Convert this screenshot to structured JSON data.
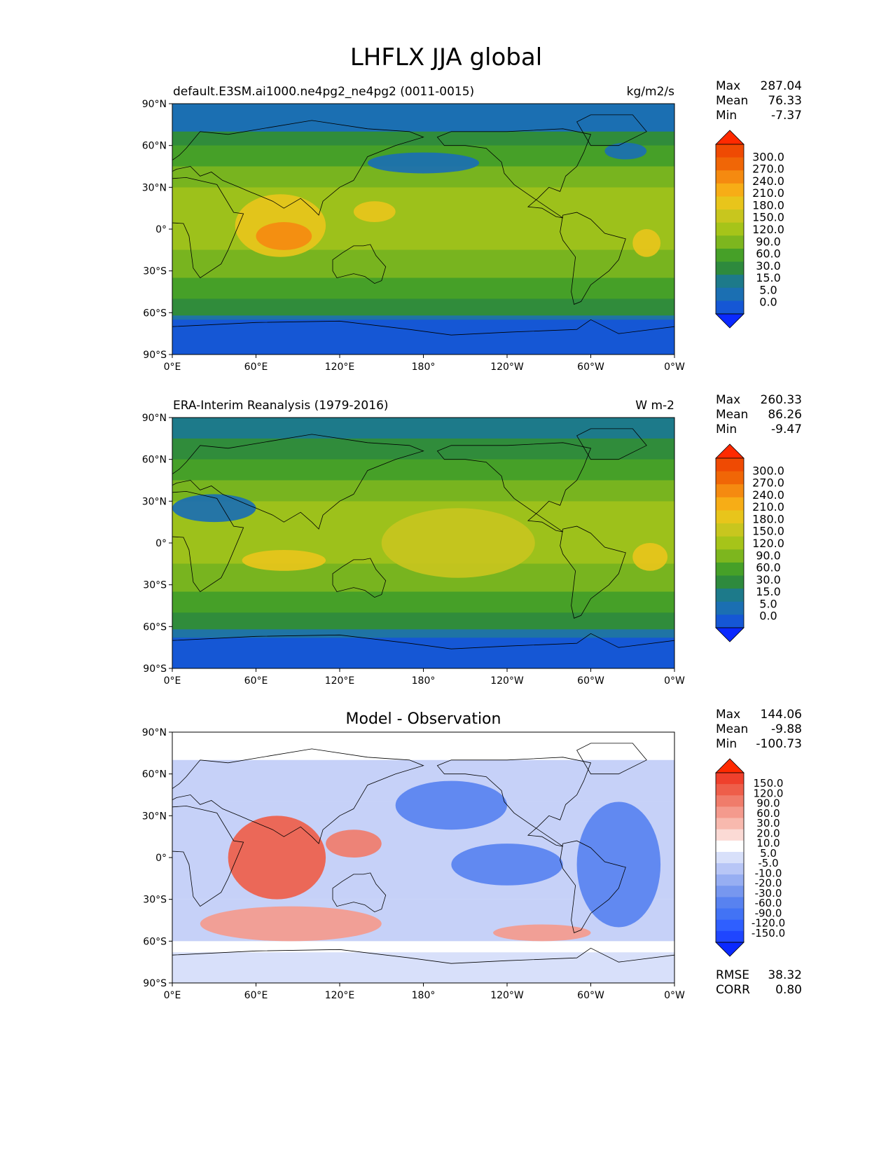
{
  "figure_title": "LHFLX JJA global",
  "colors": {
    "main_cbar": [
      "#0a29ff",
      "#1557d5",
      "#1b6fb2",
      "#1d7a8a",
      "#2e8a3d",
      "#46a028",
      "#7db61e",
      "#a6c419",
      "#c8c61e",
      "#e8c51b",
      "#f7ad16",
      "#f58a10",
      "#f06606",
      "#ef4a03",
      "#ff2a00"
    ],
    "diff_cbar": [
      "#0a29ff",
      "#1f46ff",
      "#2f5fff",
      "#4273f5",
      "#5882f0",
      "#7797ef",
      "#97aef2",
      "#b8c6f6",
      "#d8e0fa",
      "#ffffff",
      "#fbdad5",
      "#f8b9ae",
      "#f49a8d",
      "#f07c6b",
      "#ee5e4a",
      "#ef402c",
      "#ff2a00"
    ],
    "land": "#777777",
    "coast": "#000000"
  },
  "chart_data": [
    {
      "type": "contour-map",
      "title": "default.E3SM.ai1000.ne4pg2_ne4pg2 (0011-0015)",
      "units": "kg/m2/s",
      "xticks": [
        "0°E",
        "60°E",
        "120°E",
        "180°",
        "120°W",
        "60°W",
        "0°W"
      ],
      "yticks": [
        "90°N",
        "60°N",
        "30°N",
        "0°",
        "30°S",
        "60°S",
        "90°S"
      ],
      "xlim": [
        0,
        360
      ],
      "ylim": [
        -90,
        90
      ],
      "stats": {
        "max_label": "Max",
        "max": "287.04",
        "mean_label": "Mean",
        "mean": "76.33",
        "min_label": "Min",
        "min": "-7.37"
      },
      "colorbar_levels": [
        "300.0",
        "270.0",
        "240.0",
        "210.0",
        "180.0",
        "150.0",
        "120.0",
        "90.0",
        "60.0",
        "30.0",
        "15.0",
        "5.0",
        "0.0"
      ],
      "regions": [
        {
          "name": "arctic",
          "lon": [
            0,
            360
          ],
          "lat": [
            70,
            90
          ],
          "value": 5
        },
        {
          "name": "north-pacific-low",
          "lon": [
            140,
            220
          ],
          "lat": [
            40,
            55
          ],
          "value": 5
        },
        {
          "name": "north-atlantic-low",
          "lon": [
            310,
            340
          ],
          "lat": [
            50,
            62
          ],
          "value": 10
        },
        {
          "name": "indian-ocean-high",
          "lon": [
            45,
            110
          ],
          "lat": [
            -20,
            25
          ],
          "value": 200
        },
        {
          "name": "bay-of-bengal-core",
          "lon": [
            60,
            100
          ],
          "lat": [
            -15,
            5
          ],
          "value": 240
        },
        {
          "name": "west-pacific-high",
          "lon": [
            130,
            160
          ],
          "lat": [
            5,
            20
          ],
          "value": 200
        },
        {
          "name": "east-atlantic-high",
          "lon": [
            330,
            350
          ],
          "lat": [
            -20,
            0
          ],
          "value": 180
        },
        {
          "name": "southern-ocean",
          "lon": [
            0,
            360
          ],
          "lat": [
            -90,
            -65
          ],
          "value": 0
        }
      ]
    },
    {
      "type": "contour-map",
      "title": "ERA-Interim Reanalysis (1979-2016)",
      "units": "W m-2",
      "xticks": [
        "0°E",
        "60°E",
        "120°E",
        "180°",
        "120°W",
        "60°W",
        "0°W"
      ],
      "yticks": [
        "90°N",
        "60°N",
        "30°N",
        "0°",
        "30°S",
        "60°S",
        "90°S"
      ],
      "xlim": [
        0,
        360
      ],
      "ylim": [
        -90,
        90
      ],
      "stats": {
        "max_label": "Max",
        "max": "260.33",
        "mean_label": "Mean",
        "mean": "86.26",
        "min_label": "Min",
        "min": "-9.47"
      },
      "colorbar_levels": [
        "300.0",
        "270.0",
        "240.0",
        "210.0",
        "180.0",
        "150.0",
        "120.0",
        "90.0",
        "60.0",
        "30.0",
        "15.0",
        "5.0",
        "0.0"
      ],
      "regions": [
        {
          "name": "arctic",
          "lon": [
            0,
            360
          ],
          "lat": [
            75,
            90
          ],
          "value": 25
        },
        {
          "name": "sahara-arabia-low",
          "lon": [
            0,
            60
          ],
          "lat": [
            15,
            35
          ],
          "value": 5
        },
        {
          "name": "south-indian-high",
          "lon": [
            50,
            110
          ],
          "lat": [
            -20,
            -5
          ],
          "value": 200
        },
        {
          "name": "subtropical-pacific",
          "lon": [
            150,
            260
          ],
          "lat": [
            -25,
            25
          ],
          "value": 150
        },
        {
          "name": "south-atlantic",
          "lon": [
            330,
            355
          ],
          "lat": [
            -20,
            0
          ],
          "value": 180
        },
        {
          "name": "southern-ocean",
          "lon": [
            0,
            360
          ],
          "lat": [
            -90,
            -68
          ],
          "value": 0
        }
      ]
    },
    {
      "type": "contour-map",
      "title": "Model - Observation",
      "units": "",
      "xticks": [
        "0°E",
        "60°E",
        "120°E",
        "180°",
        "120°W",
        "60°W",
        "0°W"
      ],
      "yticks": [
        "90°N",
        "60°N",
        "30°N",
        "0°",
        "30°S",
        "60°S",
        "90°S"
      ],
      "xlim": [
        0,
        360
      ],
      "ylim": [
        -90,
        90
      ],
      "stats": {
        "max_label": "Max",
        "max": "144.06",
        "mean_label": "Mean",
        "mean": "-9.88",
        "min_label": "Min",
        "min": "-100.73"
      },
      "colorbar_levels": [
        "150.0",
        "120.0",
        "90.0",
        "60.0",
        "30.0",
        "20.0",
        "10.0",
        "5.0",
        "-5.0",
        "-10.0",
        "-20.0",
        "-30.0",
        "-60.0",
        "-90.0",
        "-120.0",
        "-150.0"
      ],
      "rmse_label": "RMSE",
      "rmse": "38.32",
      "corr_label": "CORR",
      "corr": "0.80",
      "regions": [
        {
          "name": "indian-ocean-positive",
          "lon": [
            40,
            110
          ],
          "lat": [
            -30,
            30
          ],
          "value": 90
        },
        {
          "name": "west-pacific-positive",
          "lon": [
            110,
            150
          ],
          "lat": [
            0,
            20
          ],
          "value": 60
        },
        {
          "name": "southern-indian-positive",
          "lon": [
            20,
            150
          ],
          "lat": [
            -60,
            -35
          ],
          "value": 40
        },
        {
          "name": "south-pacific-positive",
          "lon": [
            230,
            300
          ],
          "lat": [
            -60,
            -48
          ],
          "value": 30
        },
        {
          "name": "north-pacific-negative",
          "lon": [
            160,
            240
          ],
          "lat": [
            20,
            55
          ],
          "value": -40
        },
        {
          "name": "tropical-east-pacific-negative",
          "lon": [
            200,
            280
          ],
          "lat": [
            -20,
            10
          ],
          "value": -40
        },
        {
          "name": "atlantic-negative",
          "lon": [
            290,
            350
          ],
          "lat": [
            -50,
            40
          ],
          "value": -50
        },
        {
          "name": "antarctica",
          "lon": [
            0,
            360
          ],
          "lat": [
            -90,
            -68
          ],
          "value": 0
        }
      ]
    }
  ]
}
